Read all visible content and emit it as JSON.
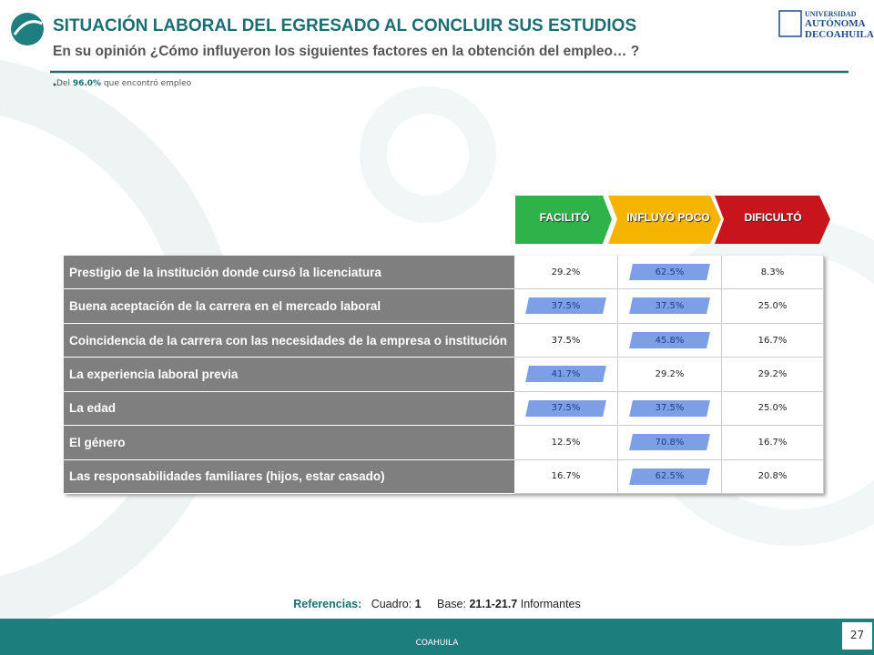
{
  "header": {
    "title": "SITUACIÓN LABORAL DEL EGRESADO AL CONCLUIR SUS ESTUDIOS",
    "subtitle": "En su opinión ¿Cómo influyeron los siguientes factores en la obtención del empleo… ?",
    "logo": [
      "UNIVERSIDAD",
      "AUTÓNOMA",
      "DE",
      "COAHUILA"
    ]
  },
  "note": [
    "Del",
    "96.0%",
    "que encontró empleo"
  ],
  "legend": [
    "FACILITÓ",
    "INFLUYÓ POCO",
    "DIFICULTÓ"
  ],
  "table": {
    "rows": [
      {
        "label": "Prestigio de la institución donde cursó la licenciatura",
        "cells": [
          "29.2%",
          "62.5%",
          "8.3%"
        ],
        "highlighted": [
          1
        ]
      },
      {
        "label": "Buena aceptación de la carrera en el mercado laboral",
        "cells": [
          "37.5%",
          "37.5%",
          "25.0%"
        ],
        "highlighted": [
          0,
          1
        ]
      },
      {
        "label": "Coincidencia de la carrera con las necesidades de la empresa o institución",
        "cells": [
          "37.5%",
          "45.8%",
          "16.7%"
        ],
        "highlighted": [
          1
        ]
      },
      {
        "label": "La experiencia laboral previa",
        "cells": [
          "41.7%",
          "29.2%",
          "29.2%"
        ],
        "highlighted": [
          0
        ]
      },
      {
        "label": "La edad",
        "cells": [
          "37.5%",
          "37.5%",
          "25.0%"
        ],
        "highlighted": [
          0,
          1
        ]
      },
      {
        "label": "El género",
        "cells": [
          "12.5%",
          "70.8%",
          "16.7%"
        ],
        "highlighted": [
          1
        ]
      },
      {
        "label": "Las responsabilidades familiares (hijos, estar casado)",
        "cells": [
          "16.7%",
          "62.5%",
          "20.8%"
        ],
        "highlighted": [
          1
        ]
      }
    ]
  },
  "footer": {
    "references": "Referencias:",
    "table_label": "Cuadro:",
    "table_number": "1",
    "base_label": "Base:",
    "base_value": "21.1-21.7",
    "base_unit": "Informantes",
    "region": "COAHUILA",
    "page": "27"
  }
}
